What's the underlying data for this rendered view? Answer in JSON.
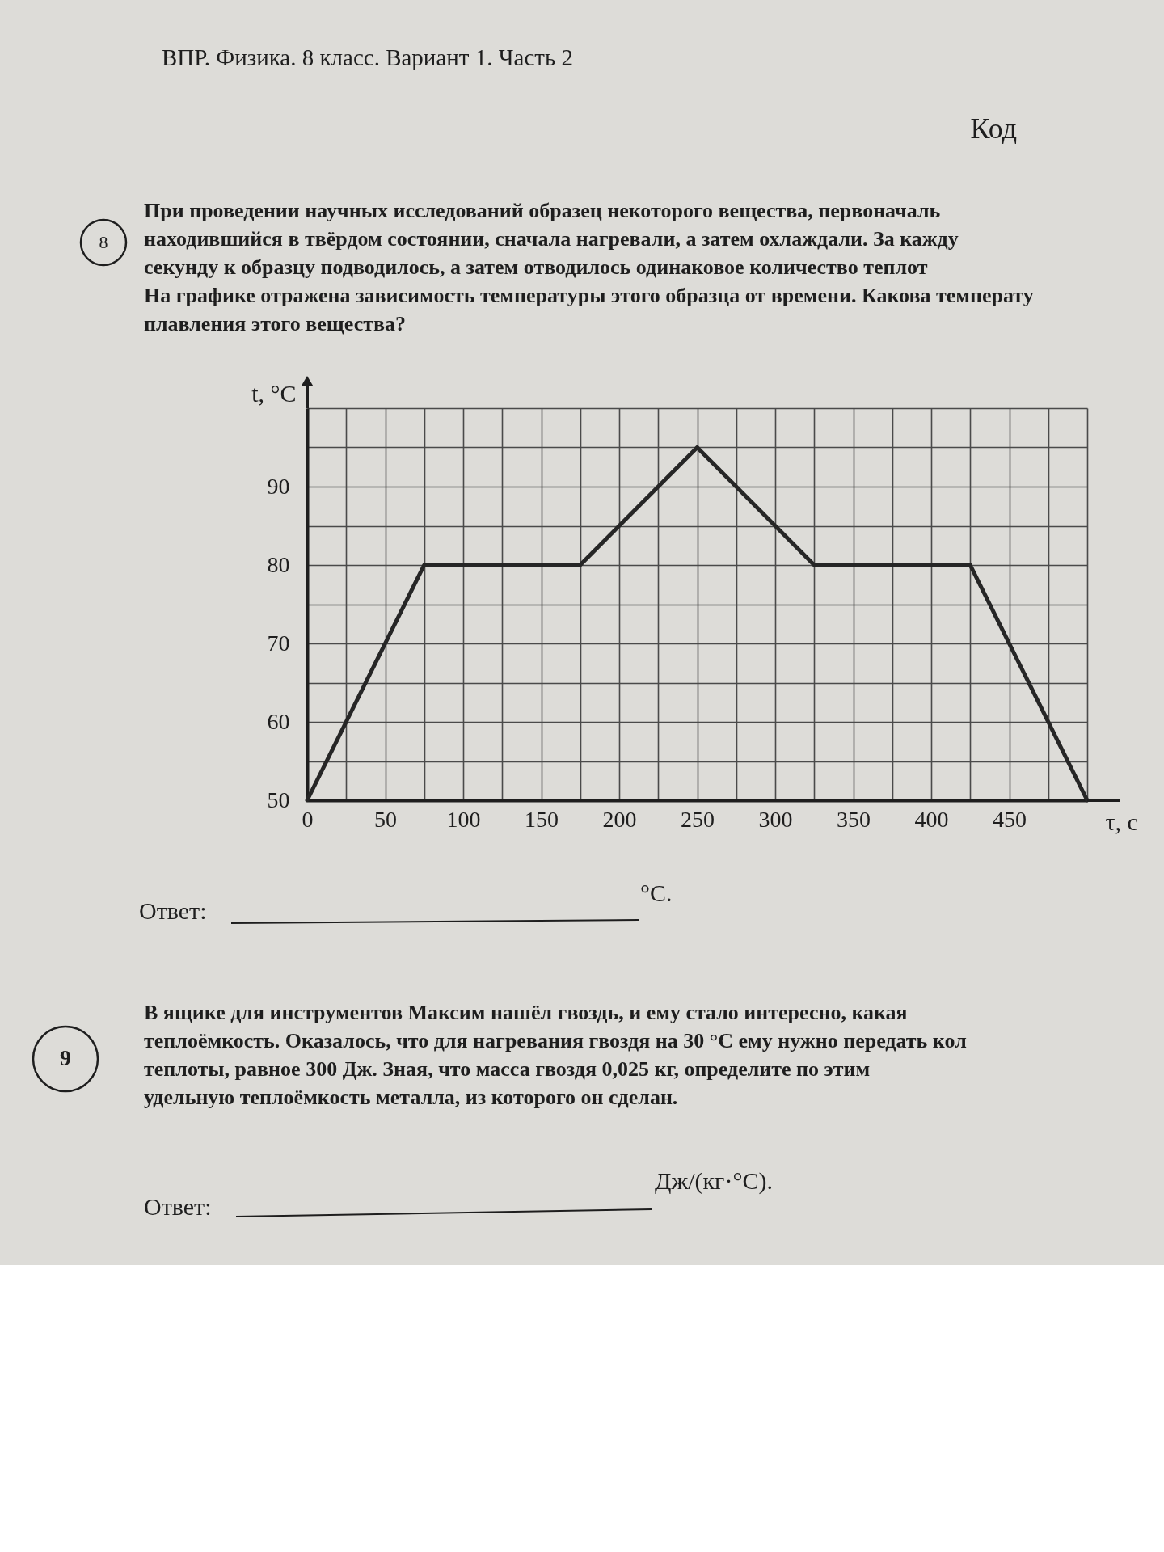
{
  "chart_data": {
    "type": "line",
    "title": "ВПР. Физика. 8 класс. Вариант 1. Часть 2",
    "subtitle": "При проведении научных исследований образец некоторого вещества, первоначаль\nнаходившийся в твёрдом состоянии, сначала нагревали, а затем охлаждали. За кажду\nсекунду к образцу подводилось, а затем отводилось одинаковое количество теплот\nНа графике отражена зависимость температуры этого образца от времени. Какова температу\nплавления этого вещества?",
    "xlabel": "τ, с",
    "ylabel": "t, °C",
    "x": [
      0,
      75,
      175,
      250,
      325,
      425,
      500
    ],
    "values": [
      50,
      80,
      80,
      95,
      80,
      80,
      50
    ],
    "color": "#262626",
    "line_style": "solid",
    "xlim": [
      0,
      500
    ],
    "ylim": [
      50,
      100
    ],
    "xticks": [
      0,
      {
        "value": 25,
        "label": null
      },
      50,
      {
        "value": 75,
        "label": null
      },
      100,
      {
        "value": 125,
        "label": null
      },
      150,
      {
        "value": 175,
        "label": null
      },
      200,
      {
        "value": 225,
        "label": null
      },
      250,
      {
        "value": 275,
        "label": null
      },
      300,
      {
        "value": 325,
        "label": null
      },
      350,
      {
        "value": 375,
        "label": null
      },
      400,
      {
        "value": 425,
        "label": null
      },
      450,
      {
        "value": 475,
        "label": null
      },
      {
        "value": 500,
        "label": null
      }
    ],
    "yticks": [
      50,
      {
        "value": 55,
        "label": null
      },
      60,
      {
        "value": 65,
        "label": null
      },
      70,
      {
        "value": 75,
        "label": null
      },
      80,
      {
        "value": 85,
        "label": null
      },
      90,
      {
        "value": 95,
        "label": null
      },
      {
        "value": 100,
        "label": null
      }
    ],
    "grid": true,
    "annotations": [
      "8",
      "Код",
      "Ответ:",
      "°C.",
      "9",
      "В ящике для инструментов Максим нашёл гвоздь, и ему стало интересно, какая\nтеплоёмкость. Оказалось, что для нагревания гвоздя на 30 °C ему нужно передать кол\nтеплоты, равное 300 Дж. Зная, что масса гвоздя 0,025 кг, определите по этим\nудельную теплоёмкость металла, из которого он сделан.",
      "Ответ:",
      "Дж/(кг·°C)."
    ]
  }
}
